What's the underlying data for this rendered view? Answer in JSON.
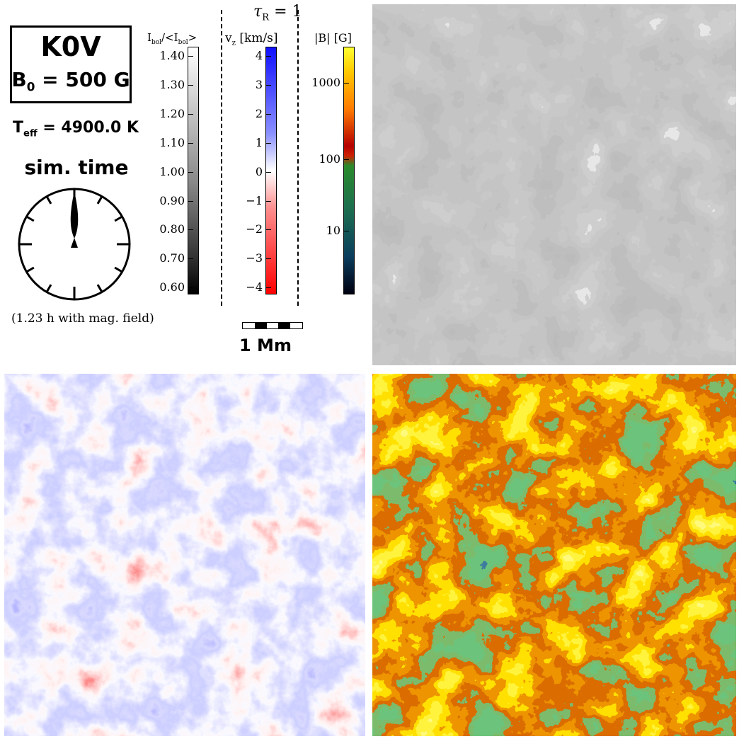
{
  "labels": {
    "star": "K0V",
    "bfield_prefix": "B",
    "bfield_sub": "0",
    "bfield_suffix": " = 500 G",
    "teff_prefix": "T",
    "teff_sub": "eff",
    "teff_suffix": " = 4900.0 K",
    "sim_time": "sim. time",
    "mag_note": "(1.23 h with mag. field)",
    "tau_prefix": "τ",
    "tau_sub": "R",
    "tau_suffix": " = 1",
    "scale": "1 Mm"
  },
  "colorbars": {
    "intensity": {
      "title_a": "I",
      "title_a_sub": "bol",
      "title_b": "/<I",
      "title_b_sub": "bol",
      "title_c": ">",
      "ticks": [
        "1.40",
        "1.30",
        "1.20",
        "1.10",
        "1.00",
        "0.90",
        "0.80",
        "0.70",
        "0.60"
      ]
    },
    "velocity": {
      "title_a": "v",
      "title_a_sub": "z",
      "title_b": " [km/s]",
      "ticks": [
        "4",
        "3",
        "2",
        "1",
        "0",
        "−1",
        "−2",
        "−3",
        "−4"
      ]
    },
    "field": {
      "title": "|B| [G]",
      "ticks": [
        "1000",
        "100",
        "10"
      ]
    }
  },
  "clock": {
    "hand_fraction": 0.0
  },
  "colors": {
    "velocity_positive": "#1f2bff",
    "velocity_negative": "#ff1f1f",
    "field_low": "#000030",
    "field_mid": "#2a8a2a",
    "field_high": "#ffee00"
  },
  "panels": {
    "intensity_map": "Bolometric intensity map",
    "velocity_map": "Vertical velocity map",
    "field_map": "Magnetic field strength map"
  }
}
